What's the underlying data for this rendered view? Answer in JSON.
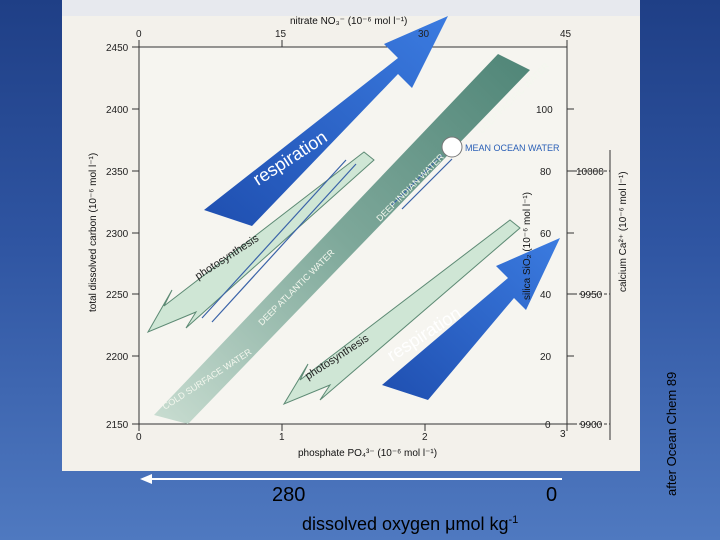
{
  "figure": {
    "top_axis": {
      "label": "nitrate NO₃⁻ (10⁻⁶ mol l⁻¹)",
      "ticks": [
        "0",
        "15",
        "30",
        "45"
      ]
    },
    "bottom_axis": {
      "label": "phosphate PO₄³⁻ (10⁻⁶ mol l⁻¹)",
      "ticks": [
        "0",
        "1",
        "2",
        "3"
      ]
    },
    "left_axis": {
      "label": "total dissolved carbon (10⁻⁶ mol l⁻¹)",
      "ticks": [
        "2450",
        "2400",
        "2350",
        "2300",
        "2250",
        "2200",
        "2150"
      ]
    },
    "silica_axis": {
      "label": "silica SiO₂ (10⁻⁶ mol l⁻¹)",
      "ticks": [
        "100",
        "80",
        "60",
        "40",
        "20",
        "0"
      ]
    },
    "calcium_axis": {
      "label": "calcium Ca²⁺ (10⁻⁶ mol l⁻¹)",
      "ticks": [
        "10000",
        "9950",
        "9900"
      ]
    },
    "water_masses": {
      "cold_surface": "COLD SURFACE WATER",
      "deep_atlantic": "DEEP ATLANTIC WATER",
      "deep_indian": "DEEP INDIAN WATER",
      "deep_pacific": "DEEP PACIFIC WATER",
      "mean_ocean": "MEAN OCEAN WATER"
    },
    "process_labels": {
      "respiration_upper": "respiration",
      "respiration_lower": "respiration",
      "photosynthesis_upper": "photosynthesis",
      "photosynthesis_lower": "photosynthesis"
    },
    "colors": {
      "band": "#6f9a8e",
      "arrow": "#2f63c9",
      "arrow_tip": "#3b7be0",
      "pale_arrow": "#cfe6d5"
    }
  },
  "oxygen_axis": {
    "left_value": "280",
    "right_value": "0",
    "label": "dissolved oxygen μmol kg",
    "label_sup": "-1"
  },
  "credit": "after Ocean Chem 89"
}
